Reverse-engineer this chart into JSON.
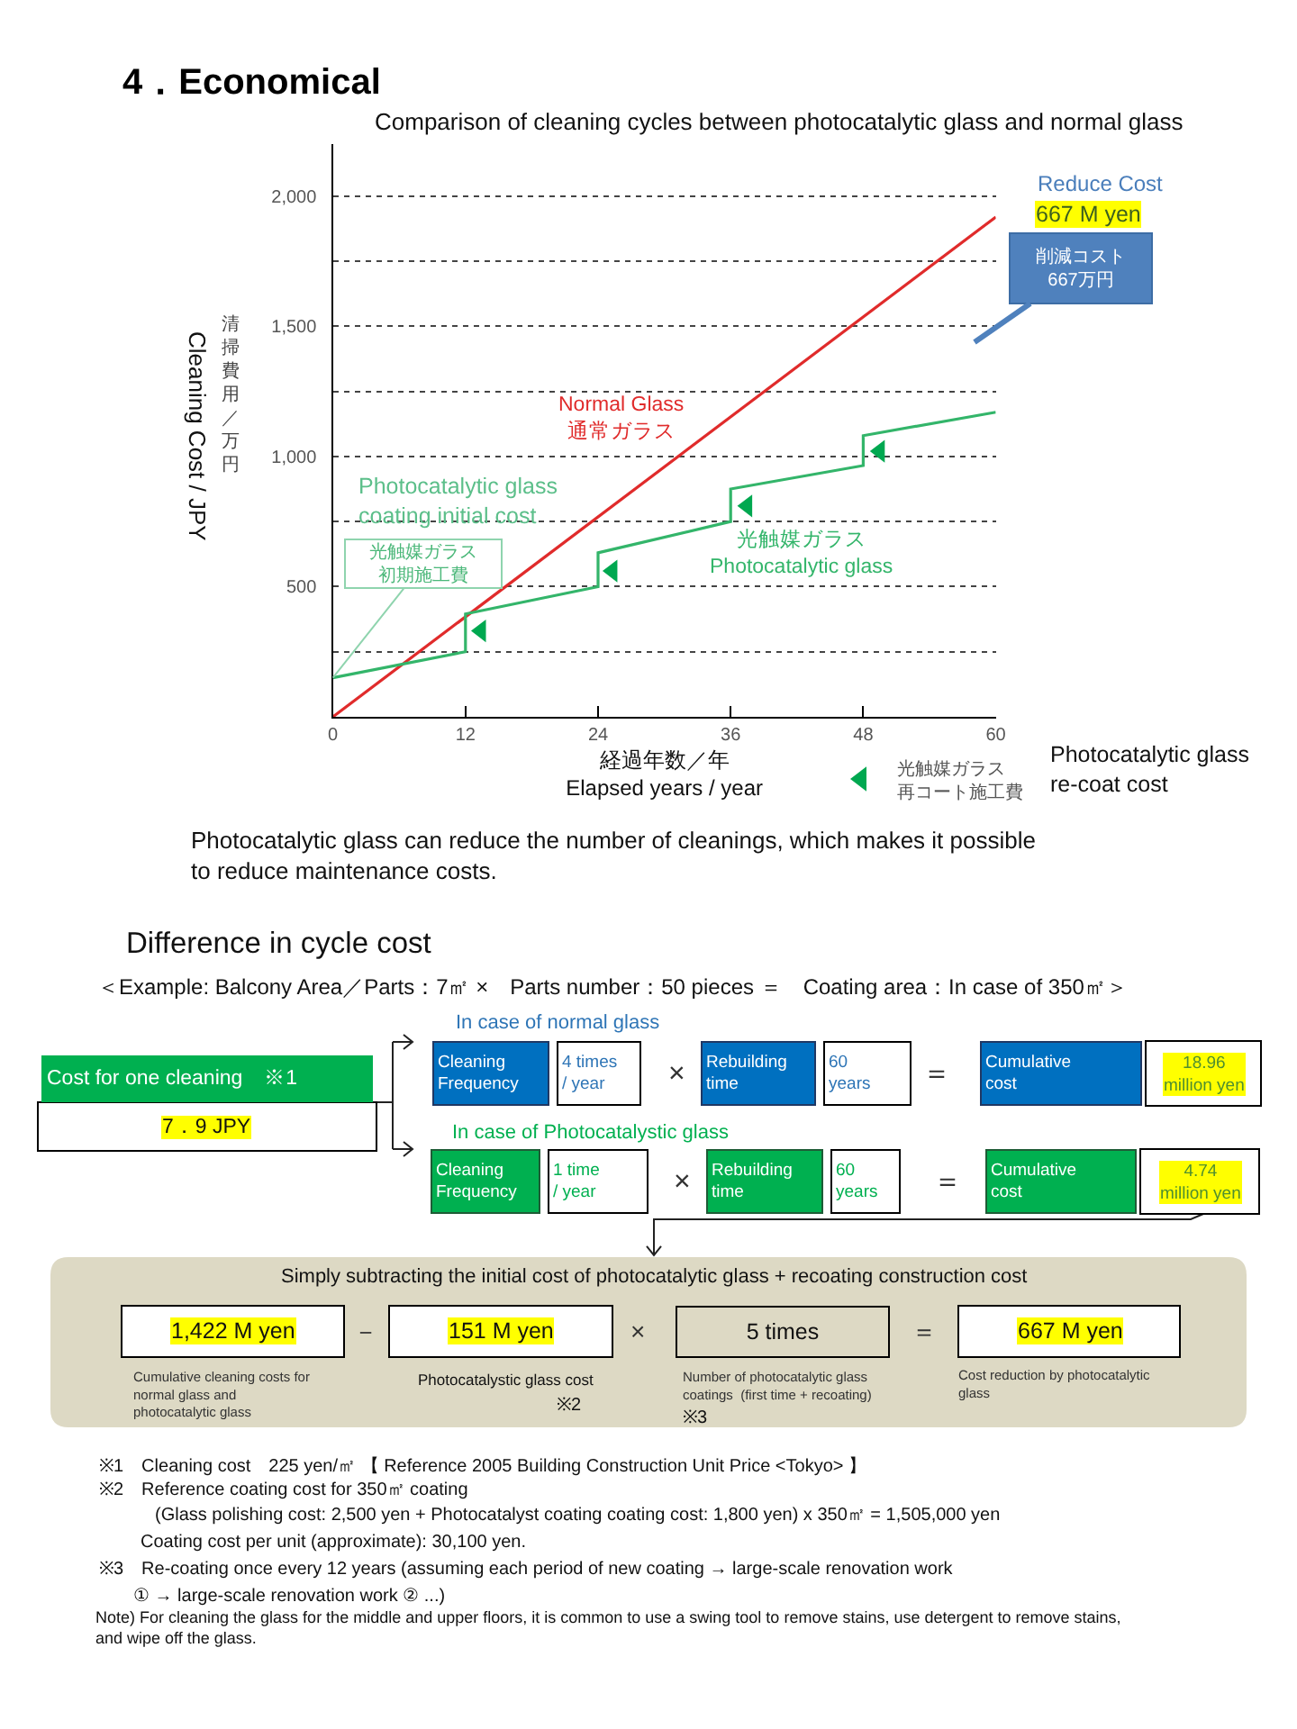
{
  "chart_data": {
    "type": "line",
    "title": "4．Economical",
    "subtitle": "Comparison of cleaning cycles between photocatalytic glass and normal glass",
    "xlabel": "経過年数／年\nElapsed years / year",
    "ylabel": "Cleaning Cost / JPY",
    "xlim": [
      0,
      60
    ],
    "xticks": [
      0,
      12,
      24,
      36,
      48,
      60
    ],
    "ylim": [
      0,
      2200
    ],
    "yticks": [
      {
        "value": 250,
        "label": null
      },
      {
        "value": 500,
        "label": "500"
      },
      {
        "value": 750,
        "label": null
      },
      {
        "value": 1000,
        "label": "1,000"
      },
      {
        "value": 1250,
        "label": null
      },
      {
        "value": 1500,
        "label": "1,500"
      },
      {
        "value": 1750,
        "label": null
      },
      {
        "value": 2000,
        "label": "2,000"
      }
    ],
    "grid": "y",
    "legend": "bottom right",
    "series": [
      {
        "name": "Normal Glass\n通常ガラス",
        "color": "#e02b2b",
        "x": [
          0,
          60
        ],
        "values": [
          0,
          1920
        ]
      },
      {
        "name": "光触媒ガラス\nPhotocatalytic glass",
        "color": "#33b56a",
        "x": [
          0,
          12,
          12,
          24,
          24,
          36,
          36,
          48,
          48,
          60
        ],
        "values": [
          150,
          250,
          395,
          500,
          630,
          750,
          875,
          965,
          1080,
          1170
        ]
      },
      {
        "name": "光触媒ガラス再コート施工費",
        "color": "#00a850",
        "type": "scatter",
        "marker": "triangle",
        "x": [
          13.4,
          25.3,
          37.5,
          49.5
        ],
        "values": [
          330,
          560,
          810,
          1020
        ]
      }
    ],
    "annotations": [
      "削減コスト\n667万円",
      "Reduce Cost",
      "667 M yen",
      "Photocatalytic glass\ncoating initial cost",
      {
        "text": "光触媒ガラス初期施工費",
        "x": 0,
        "y": 150
      },
      "Photocatalytic glass\nre-coat cost",
      "清掃費用／万円",
      "Photocatalytic glass can reduce the number of cleanings, which makes it possible\nto reduce maintenance costs.",
      "Difference in cycle cost",
      "＜Example: Balcony Area／Parts：7㎡ ×　Parts number：50 pieces ＝　Coating area：In case of 350㎡＞",
      "Cost for one cleaning　※1",
      "7．9 JPY",
      "In case of normal glass",
      "Cleaning\nFrequency",
      "4 times\n/ year",
      "×",
      "Rebuilding\ntime",
      "60\nyears",
      "＝",
      "Cumulative\ncost",
      "18.96\nmillion yen",
      "In case of Photocatalystic glass",
      "Cleaning\nFrequency",
      "1 time\n/ year",
      "×",
      "Rebuilding\ntime",
      "60\nyears",
      "＝",
      "Cumulative\ncost",
      "4.74\nmillion yen",
      "Simply subtracting the initial cost of photocatalytic glass + recoating construction cost",
      "1,422 M yen",
      "－",
      "151 M yen",
      "×",
      "5 times",
      "＝",
      "667 M yen",
      "Cumulative cleaning costs for\nnormal glass and\nphotocatalytic glass",
      "Photocatalystic glass cost",
      "※2",
      "Number of photocatalytic glass\ncoatings  (first time + recoating)",
      "※3",
      "Cost reduction by photocatalytic\nglass",
      "※1　Cleaning cost　225 yen/㎡ 【 Reference 2005 Building Construction Unit Price <Tokyo> 】",
      "※2　Reference coating cost for 350㎡ coating",
      "(Glass polishing cost: 2,500 yen + Photocatalyst coating coating cost: 1,800 yen) x 350㎡ = 1,505,000 yen",
      "Coating cost per unit (approximate): 30,100 yen.",
      "※3　Re-coating once every 12 years (assuming each period of new coating → large-scale renovation work",
      "① → large-scale renovation work ② ...)",
      "Note) For cleaning the glass for the middle and upper floors, it is common to use a swing tool to remove stains, use detergent to remove stains,\nand wipe off the glass."
    ]
  }
}
